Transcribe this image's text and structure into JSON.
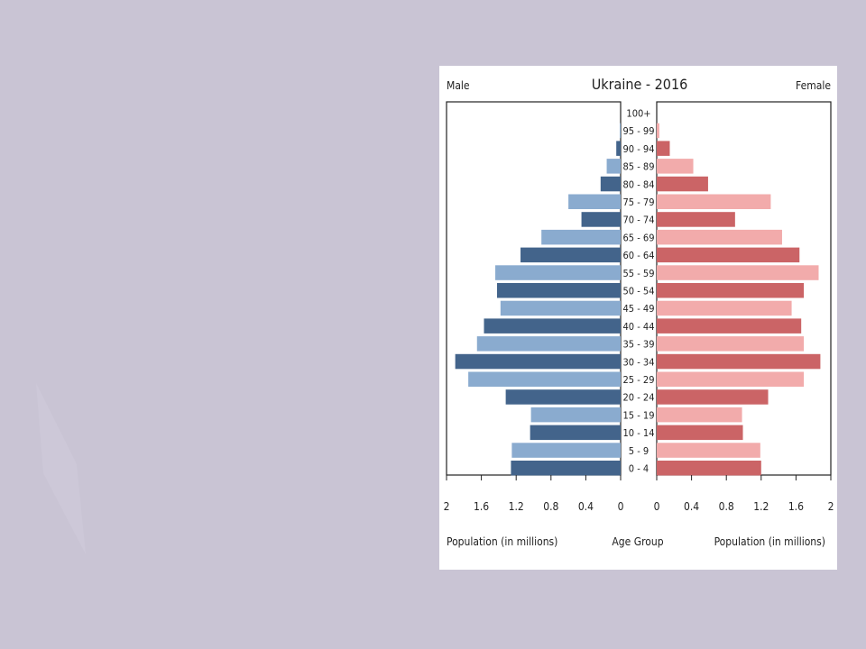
{
  "chart_data": {
    "type": "bar",
    "title": "Ukraine - 2016",
    "left_header": "Male",
    "right_header": "Female",
    "center_axis_label": "Age Group",
    "xlabel_left": "Population (in millions)",
    "xlabel_right": "Population (in millions)",
    "categories": [
      "100+",
      "95 - 99",
      "90 - 94",
      "85 - 89",
      "80 - 84",
      "75 - 79",
      "70 - 74",
      "65 - 69",
      "60 - 64",
      "55 - 59",
      "50 - 54",
      "45 - 49",
      "40 - 44",
      "35 - 39",
      "30 - 34",
      "25 - 29",
      "20 - 24",
      "15 - 19",
      "10 - 14",
      "5 - 9",
      "0 - 4"
    ],
    "series": [
      {
        "name": "Male",
        "values": [
          0.0,
          0.01,
          0.05,
          0.16,
          0.23,
          0.6,
          0.45,
          0.91,
          1.15,
          1.44,
          1.42,
          1.38,
          1.57,
          1.65,
          1.9,
          1.75,
          1.32,
          1.03,
          1.04,
          1.25,
          1.26
        ]
      },
      {
        "name": "Female",
        "values": [
          0.0,
          0.03,
          0.15,
          0.42,
          0.59,
          1.31,
          0.9,
          1.44,
          1.64,
          1.86,
          1.69,
          1.55,
          1.66,
          1.69,
          1.88,
          1.69,
          1.28,
          0.98,
          0.99,
          1.19,
          1.2
        ]
      }
    ],
    "xlim": [
      0,
      2
    ],
    "x_ticks_left": [
      "2",
      "1.6",
      "1.2",
      "0.8",
      "0.4",
      "0"
    ],
    "x_ticks_right": [
      "0",
      "0.4",
      "0.8",
      "1.2",
      "1.6",
      "2"
    ],
    "colors": {
      "male_dark": "#43648b",
      "male_light": "#8aabcf",
      "female_dark": "#cb6466",
      "female_light": "#f2abab"
    }
  }
}
